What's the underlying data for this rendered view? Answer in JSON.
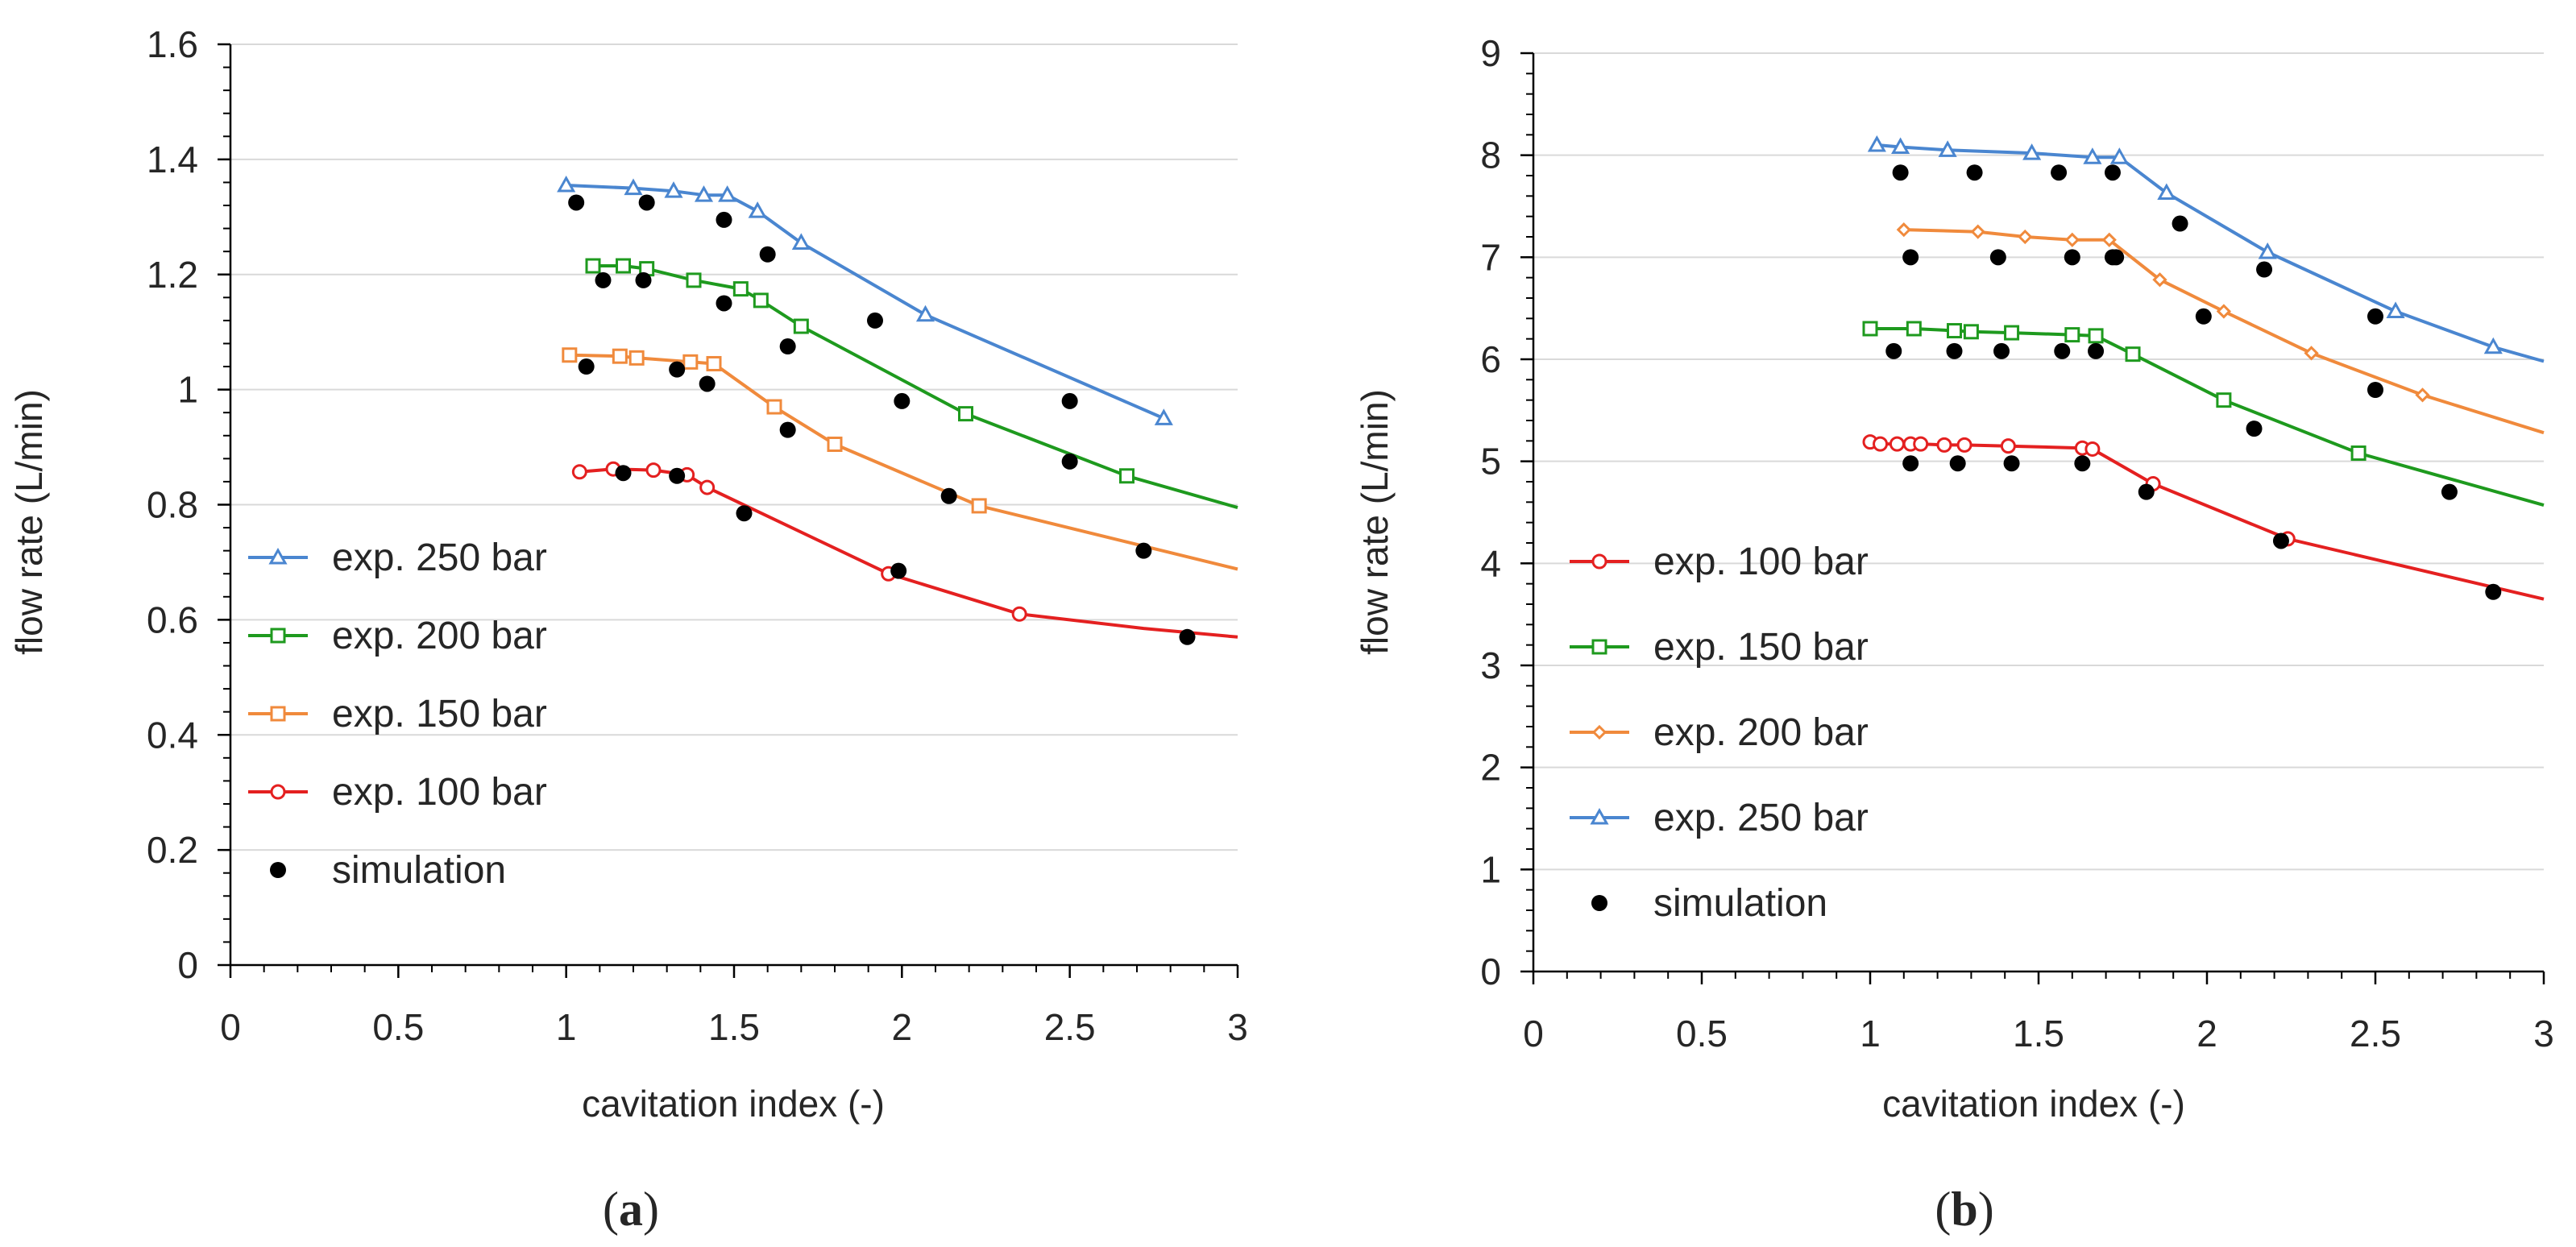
{
  "chart_data": [
    {
      "id": "a",
      "type": "scatter",
      "panel_label_open": "(",
      "panel_label_letter": "a",
      "panel_label_close": ")",
      "xlabel": "cavitation index (-)",
      "ylabel": "flow rate (L/min)",
      "xlim": [
        0,
        3
      ],
      "ylim": [
        0,
        1.6
      ],
      "xticks": [
        0,
        0.5,
        1,
        1.5,
        2,
        2.5,
        3
      ],
      "xtick_labels": [
        "0",
        "0.5",
        "1",
        "1.5",
        "2",
        "2.5",
        "3"
      ],
      "yticks": [
        0,
        0.2,
        0.4,
        0.6,
        0.8,
        1,
        1.2,
        1.4,
        1.6
      ],
      "ytick_labels": [
        "0",
        "0.2",
        "0.4",
        "0.6",
        "0.8",
        "1",
        "1.2",
        "1.4",
        "1.6"
      ],
      "y_minor_step": 0.04,
      "gridlines": "horizontal major",
      "legend_position": "lower-left",
      "series": [
        {
          "name": "exp. 250 bar",
          "color": "#4a86d0",
          "marker": "triangle",
          "line": "solid",
          "x": [
            1.0,
            1.2,
            1.32,
            1.41,
            1.48,
            1.57,
            1.7,
            2.07,
            2.78
          ],
          "y": [
            1.355,
            1.35,
            1.345,
            1.338,
            1.338,
            1.31,
            1.255,
            1.13,
            0.95
          ]
        },
        {
          "name": "exp. 200 bar",
          "color": "#1e9a1e",
          "marker": "square",
          "line": "solid",
          "x": [
            1.08,
            1.17,
            1.24,
            1.38,
            1.52,
            1.58,
            1.7,
            2.19,
            2.67
          ],
          "y": [
            1.215,
            1.215,
            1.21,
            1.19,
            1.175,
            1.155,
            1.11,
            0.958,
            0.85
          ]
        },
        {
          "name": "exp. 150 bar",
          "color": "#f08a3c",
          "marker": "square",
          "line": "solid",
          "x": [
            1.01,
            1.16,
            1.21,
            1.37,
            1.44,
            1.62,
            1.8,
            2.23
          ],
          "y": [
            1.06,
            1.058,
            1.055,
            1.048,
            1.045,
            0.97,
            0.905,
            0.798
          ]
        },
        {
          "name": "exp. 100 bar",
          "color": "#e42020",
          "marker": "circle",
          "line": "solid",
          "x": [
            1.04,
            1.14,
            1.26,
            1.36,
            1.42,
            1.96,
            2.35
          ],
          "y": [
            0.857,
            0.862,
            0.86,
            0.852,
            0.83,
            0.68,
            0.61
          ]
        }
      ],
      "line_extensions": {
        "exp. 250 bar": [],
        "exp. 200 bar": [
          [
            3.0,
            0.795
          ]
        ],
        "exp. 150 bar": [
          [
            3.0,
            0.688
          ]
        ],
        "exp. 100 bar": [
          [
            2.72,
            0.585
          ],
          [
            3.0,
            0.57
          ]
        ]
      },
      "simulation": {
        "name": "simulation",
        "color": "#000000",
        "x": [
          1.03,
          1.06,
          1.11,
          1.17,
          1.23,
          1.24,
          1.33,
          1.33,
          1.42,
          1.47,
          1.47,
          1.53,
          1.6,
          1.66,
          1.66,
          1.92,
          1.99,
          2.0,
          2.14,
          2.5,
          2.5,
          2.72,
          2.85
        ],
        "y": [
          1.325,
          1.04,
          1.19,
          0.855,
          1.19,
          1.325,
          1.035,
          0.85,
          1.01,
          1.15,
          1.295,
          0.785,
          1.235,
          0.93,
          1.075,
          1.12,
          0.685,
          0.98,
          0.815,
          0.98,
          0.875,
          0.72,
          0.57
        ]
      },
      "legend": [
        "exp. 250 bar",
        "exp. 200 bar",
        "exp. 150 bar",
        "exp. 100 bar",
        "simulation"
      ]
    },
    {
      "id": "b",
      "type": "scatter",
      "panel_label_open": "(",
      "panel_label_letter": "b",
      "panel_label_close": ")",
      "xlabel": "cavitation index (-)",
      "ylabel": "flow rate (L/min)",
      "xlim": [
        0,
        3
      ],
      "ylim": [
        0,
        9
      ],
      "xticks": [
        0,
        0.5,
        1,
        1.5,
        2,
        2.5,
        3
      ],
      "xtick_labels": [
        "0",
        "0.5",
        "1",
        "1.5",
        "2",
        "2.5",
        "3"
      ],
      "yticks": [
        0,
        1,
        2,
        3,
        4,
        5,
        6,
        7,
        8,
        9
      ],
      "ytick_labels": [
        "0",
        "1",
        "2",
        "3",
        "4",
        "5",
        "6",
        "7",
        "8",
        "9"
      ],
      "y_minor_step": 0.2,
      "gridlines": "horizontal major",
      "legend_position": "lower-left",
      "series": [
        {
          "name": "exp. 100 bar",
          "color": "#e42020",
          "marker": "circle",
          "line": "solid",
          "x": [
            1.0,
            1.03,
            1.08,
            1.12,
            1.15,
            1.22,
            1.28,
            1.41,
            1.63,
            1.66,
            1.84,
            2.24
          ],
          "y": [
            5.19,
            5.17,
            5.17,
            5.17,
            5.17,
            5.16,
            5.16,
            5.15,
            5.13,
            5.12,
            4.78,
            4.24
          ]
        },
        {
          "name": "exp. 150 bar",
          "color": "#1e9a1e",
          "marker": "square",
          "line": "solid",
          "x": [
            1.0,
            1.13,
            1.25,
            1.3,
            1.42,
            1.6,
            1.67,
            1.78,
            2.05,
            2.45
          ],
          "y": [
            6.3,
            6.3,
            6.28,
            6.27,
            6.26,
            6.24,
            6.23,
            6.05,
            5.6,
            5.08
          ]
        },
        {
          "name": "exp. 200 bar",
          "color": "#f08a3c",
          "marker": "diamond",
          "line": "solid",
          "x": [
            1.1,
            1.32,
            1.46,
            1.6,
            1.71,
            1.86,
            2.05,
            2.31,
            2.64
          ],
          "y": [
            7.27,
            7.25,
            7.2,
            7.17,
            7.17,
            6.78,
            6.47,
            6.06,
            5.65
          ]
        },
        {
          "name": "exp. 250 bar",
          "color": "#4a86d0",
          "marker": "triangle",
          "line": "solid",
          "x": [
            1.02,
            1.09,
            1.23,
            1.48,
            1.66,
            1.74,
            1.88,
            2.18,
            2.56,
            2.85
          ],
          "y": [
            8.1,
            8.08,
            8.05,
            8.02,
            7.98,
            7.98,
            7.63,
            7.05,
            6.47,
            6.12
          ]
        }
      ],
      "line_extensions": {
        "exp. 100 bar": [
          [
            3.0,
            3.65
          ]
        ],
        "exp. 150 bar": [
          [
            3.0,
            4.57
          ]
        ],
        "exp. 200 bar": [
          [
            3.0,
            5.28
          ]
        ],
        "exp. 250 bar": [
          [
            3.0,
            5.98
          ]
        ]
      },
      "simulation": {
        "name": "simulation",
        "color": "#000000",
        "x": [
          1.07,
          1.09,
          1.12,
          1.12,
          1.25,
          1.26,
          1.31,
          1.38,
          1.39,
          1.42,
          1.56,
          1.57,
          1.6,
          1.63,
          1.67,
          1.72,
          1.72,
          1.73,
          1.82,
          1.92,
          1.99,
          2.14,
          2.17,
          2.22,
          2.5,
          2.5,
          2.72,
          2.85
        ],
        "y": [
          6.08,
          7.83,
          7.0,
          4.98,
          6.08,
          4.98,
          7.83,
          7.0,
          6.08,
          4.98,
          7.83,
          6.08,
          7.0,
          4.98,
          6.08,
          7.83,
          7.0,
          7.0,
          4.7,
          7.33,
          6.42,
          5.32,
          6.88,
          4.22,
          6.42,
          5.7,
          4.7,
          3.72
        ]
      },
      "legend": [
        "exp. 100 bar",
        "exp. 150 bar",
        "exp. 200 bar",
        "exp. 250 bar",
        "simulation"
      ]
    }
  ]
}
